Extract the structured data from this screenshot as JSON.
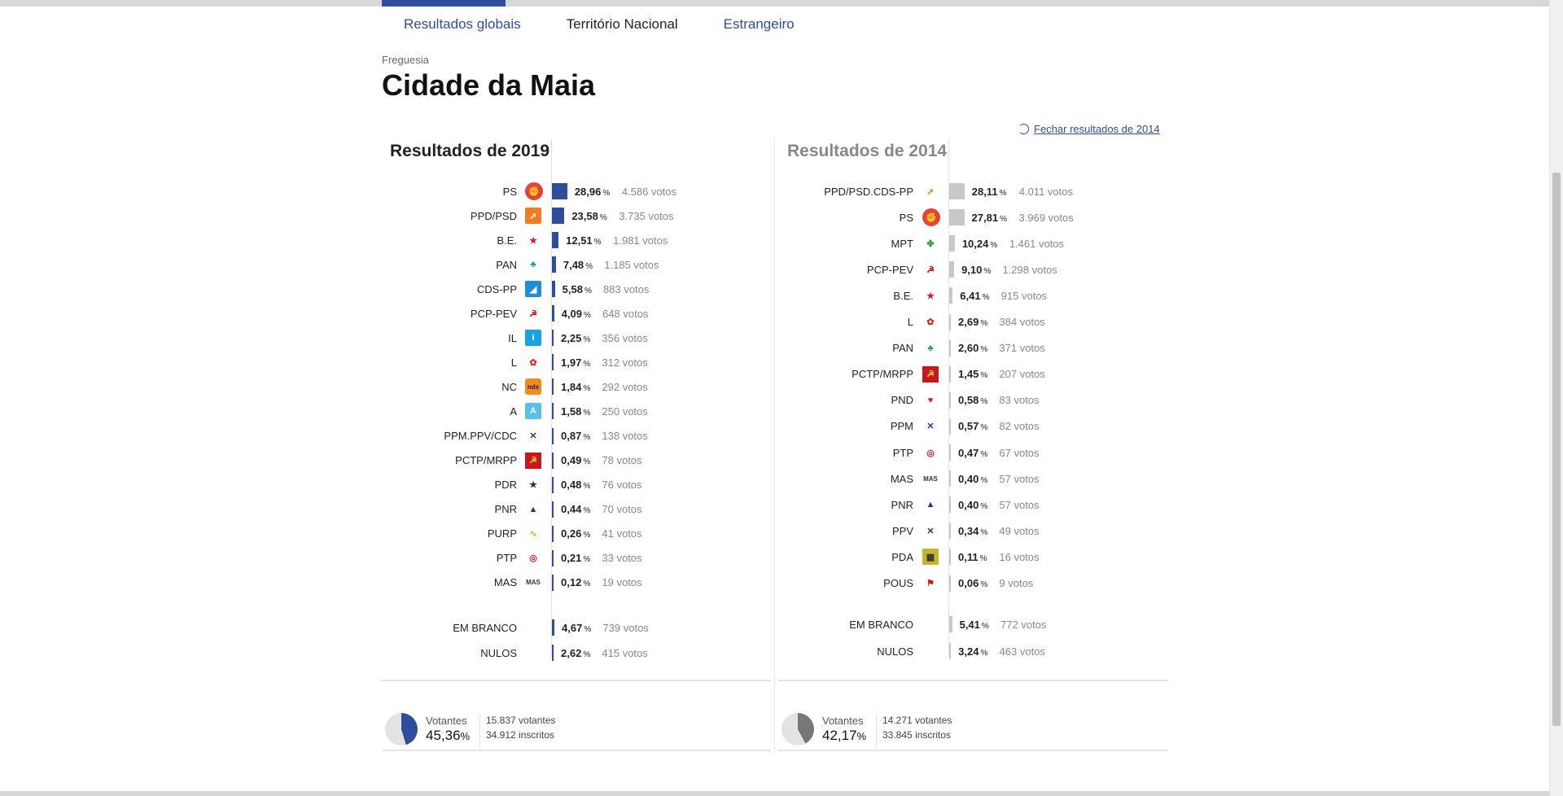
{
  "tabs": [
    "Resultados globais",
    "Território Nacional",
    "Estrangeiro"
  ],
  "page": {
    "subtitle": "Freguesia",
    "title": "Cidade da Maia",
    "close_link": "Fechar resultados de 2014"
  },
  "colors": {
    "accent": "#2e4d9b",
    "bar_2019": "#2e4d9b",
    "bar_2014": "#c8c8c8"
  },
  "y2019": {
    "heading": "Resultados de 2019",
    "parties": [
      {
        "name": "PS",
        "pct": "28,96",
        "votes": "4.586 votos",
        "share": 28.96,
        "icon": "ps-icon"
      },
      {
        "name": "PPD/PSD",
        "pct": "23,58",
        "votes": "3.735 votos",
        "share": 23.58,
        "icon": "psd-icon"
      },
      {
        "name": "B.E.",
        "pct": "12,51",
        "votes": "1.981 votos",
        "share": 12.51,
        "icon": "be-icon"
      },
      {
        "name": "PAN",
        "pct": "7,48",
        "votes": "1.185 votos",
        "share": 7.48,
        "icon": "pan-icon"
      },
      {
        "name": "CDS-PP",
        "pct": "5,58",
        "votes": "883 votos",
        "share": 5.58,
        "icon": "cds-icon"
      },
      {
        "name": "PCP-PEV",
        "pct": "4,09",
        "votes": "648 votos",
        "share": 4.09,
        "icon": "pcp-icon"
      },
      {
        "name": "IL",
        "pct": "2,25",
        "votes": "356 votos",
        "share": 2.25,
        "icon": "il-icon"
      },
      {
        "name": "L",
        "pct": "1,97",
        "votes": "312 votos",
        "share": 1.97,
        "icon": "livre-icon"
      },
      {
        "name": "NC",
        "pct": "1,84",
        "votes": "292 votos",
        "share": 1.84,
        "icon": "nc-icon"
      },
      {
        "name": "A",
        "pct": "1,58",
        "votes": "250 votos",
        "share": 1.58,
        "icon": "alianca-icon"
      },
      {
        "name": "PPM.PPV/CDC",
        "pct": "0,87",
        "votes": "138 votos",
        "share": 0.87,
        "icon": "ppm-icon"
      },
      {
        "name": "PCTP/MRPP",
        "pct": "0,49",
        "votes": "78 votos",
        "share": 0.49,
        "icon": "pctp-icon"
      },
      {
        "name": "PDR",
        "pct": "0,48",
        "votes": "76 votos",
        "share": 0.48,
        "icon": "pdr-icon"
      },
      {
        "name": "PNR",
        "pct": "0,44",
        "votes": "70 votos",
        "share": 0.44,
        "icon": "pnr-icon"
      },
      {
        "name": "PURP",
        "pct": "0,26",
        "votes": "41 votos",
        "share": 0.26,
        "icon": "purp-icon"
      },
      {
        "name": "PTP",
        "pct": "0,21",
        "votes": "33 votos",
        "share": 0.21,
        "icon": "ptp-icon"
      },
      {
        "name": "MAS",
        "pct": "0,12",
        "votes": "19 votos",
        "share": 0.12,
        "icon": "mas-icon"
      }
    ],
    "blank": {
      "name": "EM BRANCO",
      "pct": "4,67",
      "votes": "739 votos",
      "share": 4.67
    },
    "null": {
      "name": "NULOS",
      "pct": "2,62",
      "votes": "415 votos",
      "share": 2.62
    },
    "turnout": {
      "label": "Votantes",
      "pct": "45,36",
      "share": 45.36,
      "voters": "15.837 votantes",
      "registered": "34.912 inscritos"
    }
  },
  "y2014": {
    "heading": "Resultados de 2014",
    "parties": [
      {
        "name": "PPD/PSD.CDS-PP",
        "pct": "28,11",
        "votes": "4.011 votos",
        "share": 28.11,
        "icon": "paf-icon"
      },
      {
        "name": "PS",
        "pct": "27,81",
        "votes": "3.969 votos",
        "share": 27.81,
        "icon": "ps-icon"
      },
      {
        "name": "MPT",
        "pct": "10,24",
        "votes": "1.461 votos",
        "share": 10.24,
        "icon": "mpt-icon"
      },
      {
        "name": "PCP-PEV",
        "pct": "9,10",
        "votes": "1.298 votos",
        "share": 9.1,
        "icon": "pcp-icon"
      },
      {
        "name": "B.E.",
        "pct": "6,41",
        "votes": "915 votos",
        "share": 6.41,
        "icon": "be-icon"
      },
      {
        "name": "L",
        "pct": "2,69",
        "votes": "384 votos",
        "share": 2.69,
        "icon": "livre-icon"
      },
      {
        "name": "PAN",
        "pct": "2,60",
        "votes": "371 votos",
        "share": 2.6,
        "icon": "pan-icon"
      },
      {
        "name": "PCTP/MRPP",
        "pct": "1,45",
        "votes": "207 votos",
        "share": 1.45,
        "icon": "pctp-icon"
      },
      {
        "name": "PND",
        "pct": "0,58",
        "votes": "83 votos",
        "share": 0.58,
        "icon": "pnd-icon"
      },
      {
        "name": "PPM",
        "pct": "0,57",
        "votes": "82 votos",
        "share": 0.57,
        "icon": "ppm-icon"
      },
      {
        "name": "PTP",
        "pct": "0,47",
        "votes": "67 votos",
        "share": 0.47,
        "icon": "ptp-icon"
      },
      {
        "name": "MAS",
        "pct": "0,40",
        "votes": "57 votos",
        "share": 0.4,
        "icon": "mas-icon"
      },
      {
        "name": "PNR",
        "pct": "0,40",
        "votes": "57 votos",
        "share": 0.4,
        "icon": "pnr-icon"
      },
      {
        "name": "PPV",
        "pct": "0,34",
        "votes": "49 votos",
        "share": 0.34,
        "icon": "ppv-icon"
      },
      {
        "name": "PDA",
        "pct": "0,11",
        "votes": "16 votos",
        "share": 0.11,
        "icon": "pda-icon"
      },
      {
        "name": "POUS",
        "pct": "0,06",
        "votes": "9 votos",
        "share": 0.06,
        "icon": "pous-icon"
      }
    ],
    "blank": {
      "name": "EM BRANCO",
      "pct": "5,41",
      "votes": "772 votos",
      "share": 5.41
    },
    "null": {
      "name": "NULOS",
      "pct": "3,24",
      "votes": "463 votos",
      "share": 3.24
    },
    "turnout": {
      "label": "Votantes",
      "pct": "42,17",
      "share": 42.17,
      "voters": "14.271 votantes",
      "registered": "33.845 inscritos"
    }
  }
}
